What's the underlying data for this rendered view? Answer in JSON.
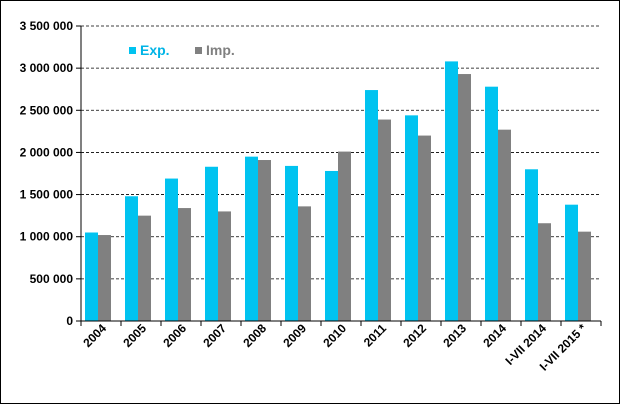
{
  "chart_data": {
    "type": "bar",
    "categories": [
      "2004",
      "2005",
      "2006",
      "2007",
      "2008",
      "2009",
      "2010",
      "2011",
      "2012",
      "2013",
      "2014",
      "I-VII 2014",
      "I-VII 2015 *"
    ],
    "series": [
      {
        "name": "Exp.",
        "color": "#00c3f0",
        "values": [
          1050000,
          1480000,
          1690000,
          1830000,
          1950000,
          1840000,
          1780000,
          2740000,
          2440000,
          3080000,
          2780000,
          1800000,
          1380000
        ]
      },
      {
        "name": "Imp.",
        "color": "#808080",
        "values": [
          1020000,
          1250000,
          1340000,
          1300000,
          1910000,
          1360000,
          2010000,
          2390000,
          2200000,
          2930000,
          2270000,
          1160000,
          1060000
        ]
      }
    ],
    "ylim": [
      0,
      3500000
    ],
    "yticks": [
      "0",
      "500 000",
      "1 000 000",
      "1 500 000",
      "2 000 000",
      "2 500 000",
      "3 000 000",
      "3 500 000"
    ],
    "grid": true,
    "legend": "top-left"
  }
}
